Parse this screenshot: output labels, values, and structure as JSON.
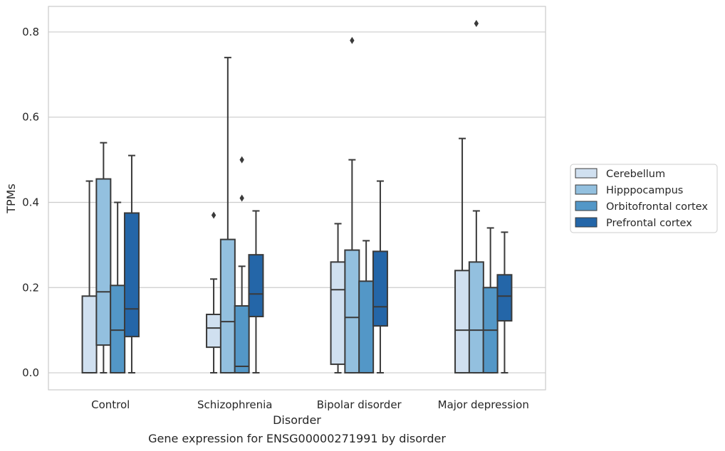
{
  "chart_data": {
    "type": "box",
    "caption": "Gene expression for ENSG00000271991 by disorder",
    "xlabel": "Disorder",
    "ylabel": "TPMs",
    "ylim": [
      -0.04,
      0.86
    ],
    "yticks": [
      0.0,
      0.2,
      0.4,
      0.6,
      0.8
    ],
    "ytick_labels": [
      "0.0",
      "0.2",
      "0.4",
      "0.6",
      "0.8"
    ],
    "grid": "horizontal",
    "legend_position": "right",
    "categories": [
      "Control",
      "Schizophrenia",
      "Bipolar disorder",
      "Major depression"
    ],
    "series": [
      {
        "name": "Cerebellum",
        "color": "#d0e0f0",
        "boxes": [
          {
            "whisker_low": 0.0,
            "q1": 0.0,
            "median": 0.0,
            "q3": 0.18,
            "whisker_high": 0.45,
            "outliers": []
          },
          {
            "whisker_low": 0.0,
            "q1": 0.06,
            "median": 0.105,
            "q3": 0.137,
            "whisker_high": 0.22,
            "outliers": [
              0.37
            ]
          },
          {
            "whisker_low": 0.0,
            "q1": 0.02,
            "median": 0.195,
            "q3": 0.26,
            "whisker_high": 0.35,
            "outliers": []
          },
          {
            "whisker_low": 0.0,
            "q1": 0.0,
            "median": 0.1,
            "q3": 0.24,
            "whisker_high": 0.55,
            "outliers": []
          }
        ]
      },
      {
        "name": "Hipppocampus",
        "color": "#93c0df",
        "boxes": [
          {
            "whisker_low": 0.0,
            "q1": 0.065,
            "median": 0.19,
            "q3": 0.455,
            "whisker_high": 0.54,
            "outliers": []
          },
          {
            "whisker_low": 0.0,
            "q1": 0.0,
            "median": 0.12,
            "q3": 0.313,
            "whisker_high": 0.74,
            "outliers": []
          },
          {
            "whisker_low": 0.0,
            "q1": 0.0,
            "median": 0.13,
            "q3": 0.288,
            "whisker_high": 0.5,
            "outliers": [
              0.78
            ]
          },
          {
            "whisker_low": 0.0,
            "q1": 0.0,
            "median": 0.1,
            "q3": 0.26,
            "whisker_high": 0.38,
            "outliers": [
              0.82
            ]
          }
        ]
      },
      {
        "name": "Orbitofrontal cortex",
        "color": "#5397c7",
        "boxes": [
          {
            "whisker_low": 0.0,
            "q1": 0.0,
            "median": 0.1,
            "q3": 0.205,
            "whisker_high": 0.4,
            "outliers": []
          },
          {
            "whisker_low": 0.0,
            "q1": 0.0,
            "median": 0.015,
            "q3": 0.157,
            "whisker_high": 0.25,
            "outliers": [
              0.41,
              0.5
            ]
          },
          {
            "whisker_low": 0.0,
            "q1": 0.0,
            "median": 0.0,
            "q3": 0.215,
            "whisker_high": 0.31,
            "outliers": []
          },
          {
            "whisker_low": 0.0,
            "q1": 0.0,
            "median": 0.1,
            "q3": 0.2,
            "whisker_high": 0.34,
            "outliers": []
          }
        ]
      },
      {
        "name": "Prefrontal cortex",
        "color": "#2466a8",
        "boxes": [
          {
            "whisker_low": 0.0,
            "q1": 0.085,
            "median": 0.15,
            "q3": 0.375,
            "whisker_high": 0.51,
            "outliers": []
          },
          {
            "whisker_low": 0.0,
            "q1": 0.132,
            "median": 0.185,
            "q3": 0.277,
            "whisker_high": 0.38,
            "outliers": []
          },
          {
            "whisker_low": 0.0,
            "q1": 0.11,
            "median": 0.155,
            "q3": 0.285,
            "whisker_high": 0.45,
            "outliers": []
          },
          {
            "whisker_low": 0.0,
            "q1": 0.122,
            "median": 0.18,
            "q3": 0.23,
            "whisker_high": 0.33,
            "outliers": []
          }
        ]
      }
    ]
  }
}
